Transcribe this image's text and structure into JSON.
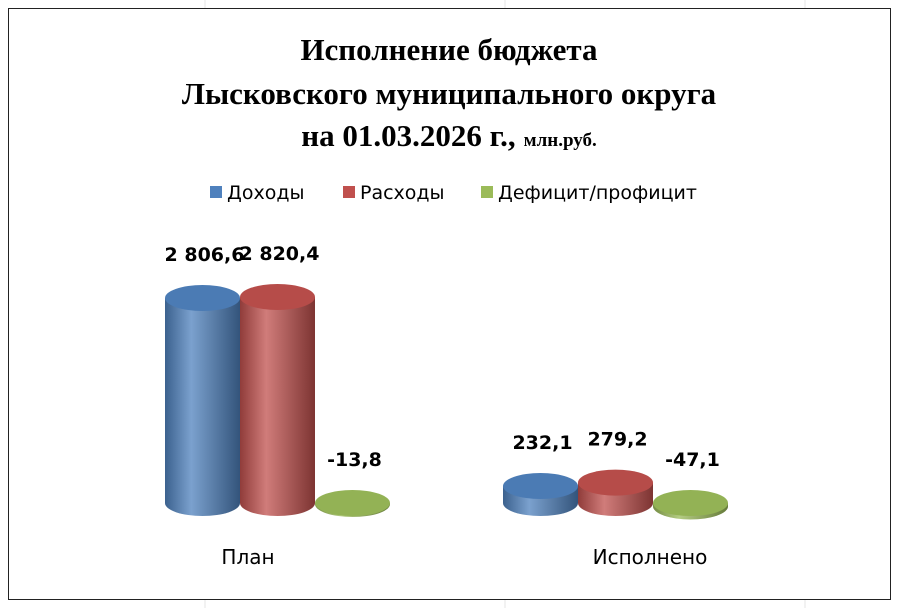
{
  "chart_data": {
    "type": "bar3d",
    "title": [
      "Исполнение бюджета",
      "Лысковского муниципального округа",
      "на 01.03.2026 г.,"
    ],
    "units": "млн.руб.",
    "categories": [
      "План",
      "Исполнено"
    ],
    "series": [
      {
        "name": "Доходы",
        "color": "#4f81bd",
        "values": [
          2806.6,
          232.1
        ],
        "value_labels": [
          "2 806,6",
          "232,1"
        ]
      },
      {
        "name": "Расходы",
        "color": "#c0504d",
        "values": [
          2820.4,
          279.2
        ],
        "value_labels": [
          "2 820,4",
          "279,2"
        ]
      },
      {
        "name": "Дефицит/профицит",
        "color": "#9bbb59",
        "values": [
          -13.8,
          -47.1
        ],
        "value_labels": [
          "-13,8",
          "-47,1"
        ]
      }
    ],
    "legend": "top"
  }
}
